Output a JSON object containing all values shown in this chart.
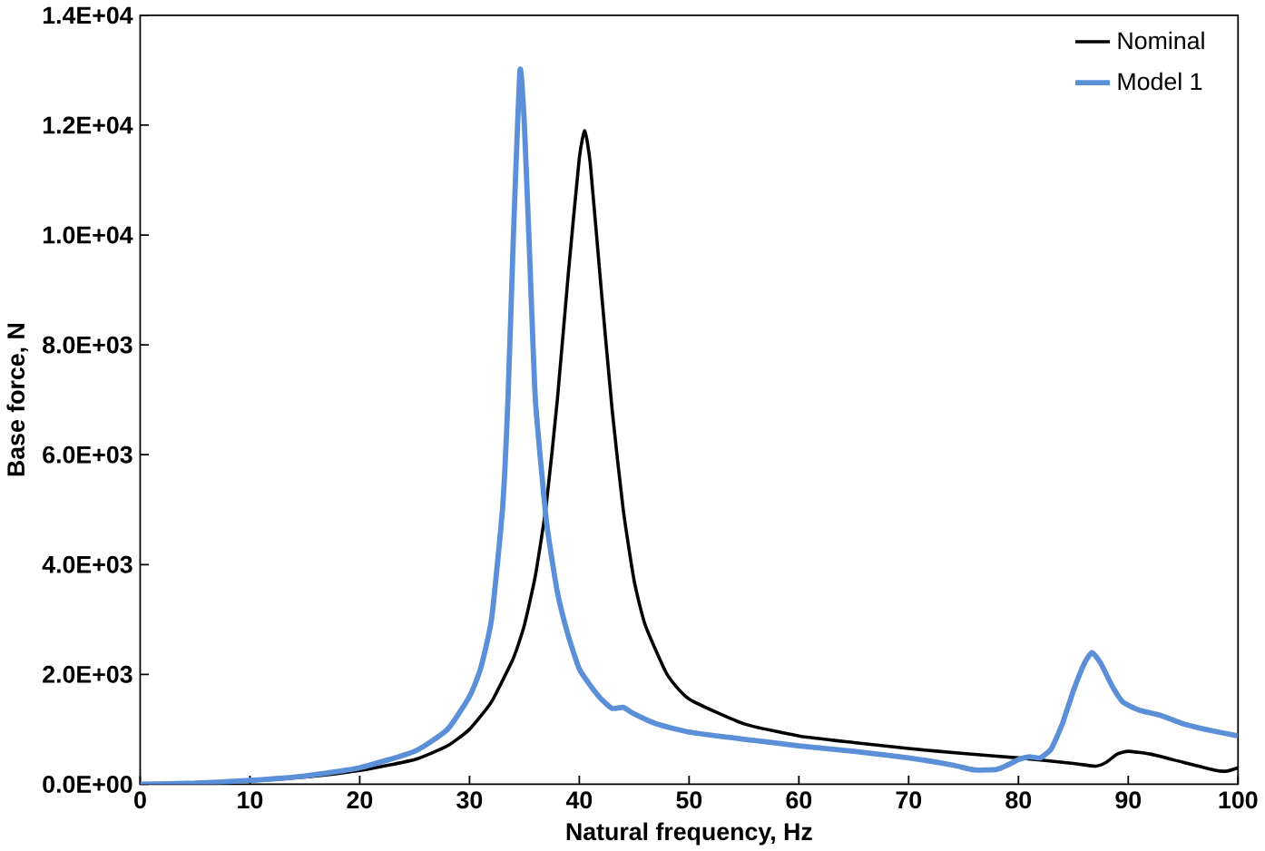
{
  "chart_data": {
    "type": "line",
    "xlabel": "Natural frequency, Hz",
    "ylabel": "Base  force, N",
    "xlim": [
      0,
      100
    ],
    "xticks": [
      0,
      10,
      20,
      30,
      40,
      50,
      60,
      70,
      80,
      90,
      100
    ],
    "ylim": [
      0,
      14000
    ],
    "yticks": [
      {
        "value": 0,
        "label": "0.0E+00"
      },
      {
        "value": 2000,
        "label": "2.0E+03"
      },
      {
        "value": 4000,
        "label": "4.0E+03"
      },
      {
        "value": 6000,
        "label": "6.0E+03"
      },
      {
        "value": 8000,
        "label": "8.0E+03"
      },
      {
        "value": 10000,
        "label": "1.0E+04"
      },
      {
        "value": 12000,
        "label": "1.2E+04"
      },
      {
        "value": 14000,
        "label": "1.4E+04"
      }
    ],
    "legend": "top right",
    "grid": false,
    "marker": "none",
    "series": [
      {
        "name": "Nominal",
        "color": "#000000",
        "x": [
          0,
          5,
          10,
          15,
          20,
          25,
          28,
          30,
          32,
          34,
          35,
          36,
          37,
          38,
          39,
          40,
          40.5,
          41,
          42,
          43,
          44,
          45,
          46,
          48,
          50,
          55,
          60,
          65,
          70,
          75,
          80,
          85,
          87,
          88,
          89,
          90,
          92,
          95,
          98,
          99,
          100
        ],
        "values": [
          0,
          20,
          60,
          130,
          250,
          450,
          700,
          1000,
          1500,
          2300,
          2900,
          3800,
          5100,
          7000,
          9300,
          11400,
          11900,
          11300,
          9000,
          6800,
          5000,
          3700,
          2900,
          2000,
          1550,
          1100,
          880,
          760,
          650,
          560,
          480,
          380,
          330,
          400,
          550,
          600,
          550,
          400,
          250,
          240,
          300
        ]
      },
      {
        "name": "Model 1",
        "color": "#5b8fd8",
        "x": [
          0,
          5,
          10,
          15,
          20,
          25,
          28,
          30,
          31,
          32,
          33,
          33.5,
          34,
          34.6,
          35,
          35.5,
          36,
          37,
          38,
          39,
          40,
          41,
          42,
          43,
          44,
          45,
          47,
          50,
          55,
          60,
          65,
          70,
          74,
          76,
          78,
          79,
          80,
          81,
          82,
          83,
          84,
          85,
          86,
          86.7,
          87.5,
          88.5,
          89.5,
          91,
          93,
          95,
          97,
          100
        ],
        "values": [
          0,
          20,
          70,
          150,
          300,
          600,
          1000,
          1600,
          2100,
          3000,
          5000,
          7000,
          10000,
          13000,
          12000,
          9500,
          7000,
          4800,
          3500,
          2700,
          2100,
          1800,
          1550,
          1380,
          1400,
          1280,
          1100,
          950,
          820,
          700,
          600,
          480,
          350,
          260,
          270,
          350,
          450,
          500,
          480,
          650,
          1100,
          1700,
          2200,
          2400,
          2200,
          1800,
          1500,
          1350,
          1250,
          1100,
          1000,
          880
        ]
      }
    ]
  }
}
